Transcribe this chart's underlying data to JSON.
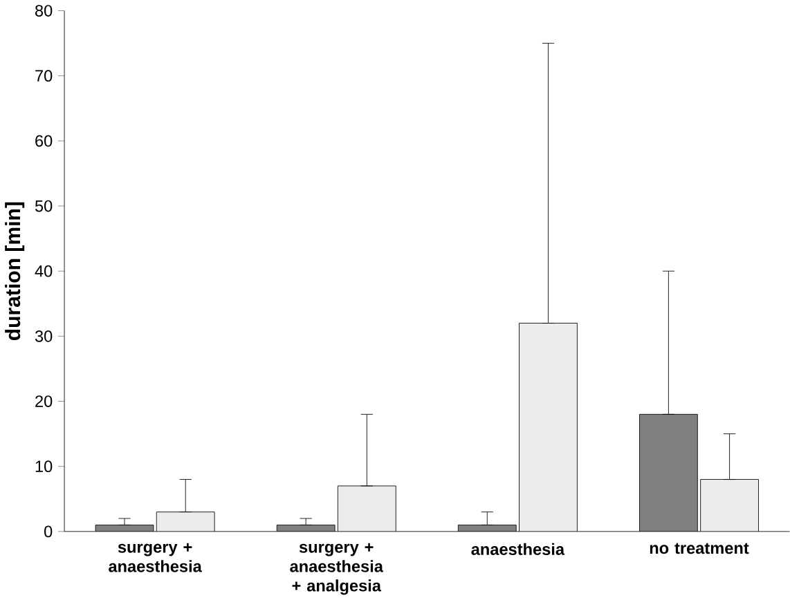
{
  "chart_data": {
    "type": "bar",
    "ylabel": "duration [min]",
    "categories": [
      "surgery + anaesthesia",
      "surgery + anaesthesia + analgesia",
      "anaesthesia",
      "no treatment"
    ],
    "series": [
      {
        "color": "#808080",
        "values": [
          1,
          1,
          1,
          18
        ],
        "errors": [
          [
            1,
            2
          ],
          [
            1,
            2
          ],
          [
            1,
            3
          ],
          [
            18,
            40
          ]
        ]
      },
      {
        "color": "#ececec",
        "values": [
          3,
          7,
          32,
          8
        ],
        "errors": [
          [
            3,
            8
          ],
          [
            7,
            18
          ],
          [
            32,
            75
          ],
          [
            8,
            15
          ]
        ]
      }
    ],
    "ylim": [
      0,
      80
    ],
    "yticks": [
      0,
      10,
      20,
      30,
      40,
      50,
      60,
      70,
      80
    ],
    "grid": false
  }
}
